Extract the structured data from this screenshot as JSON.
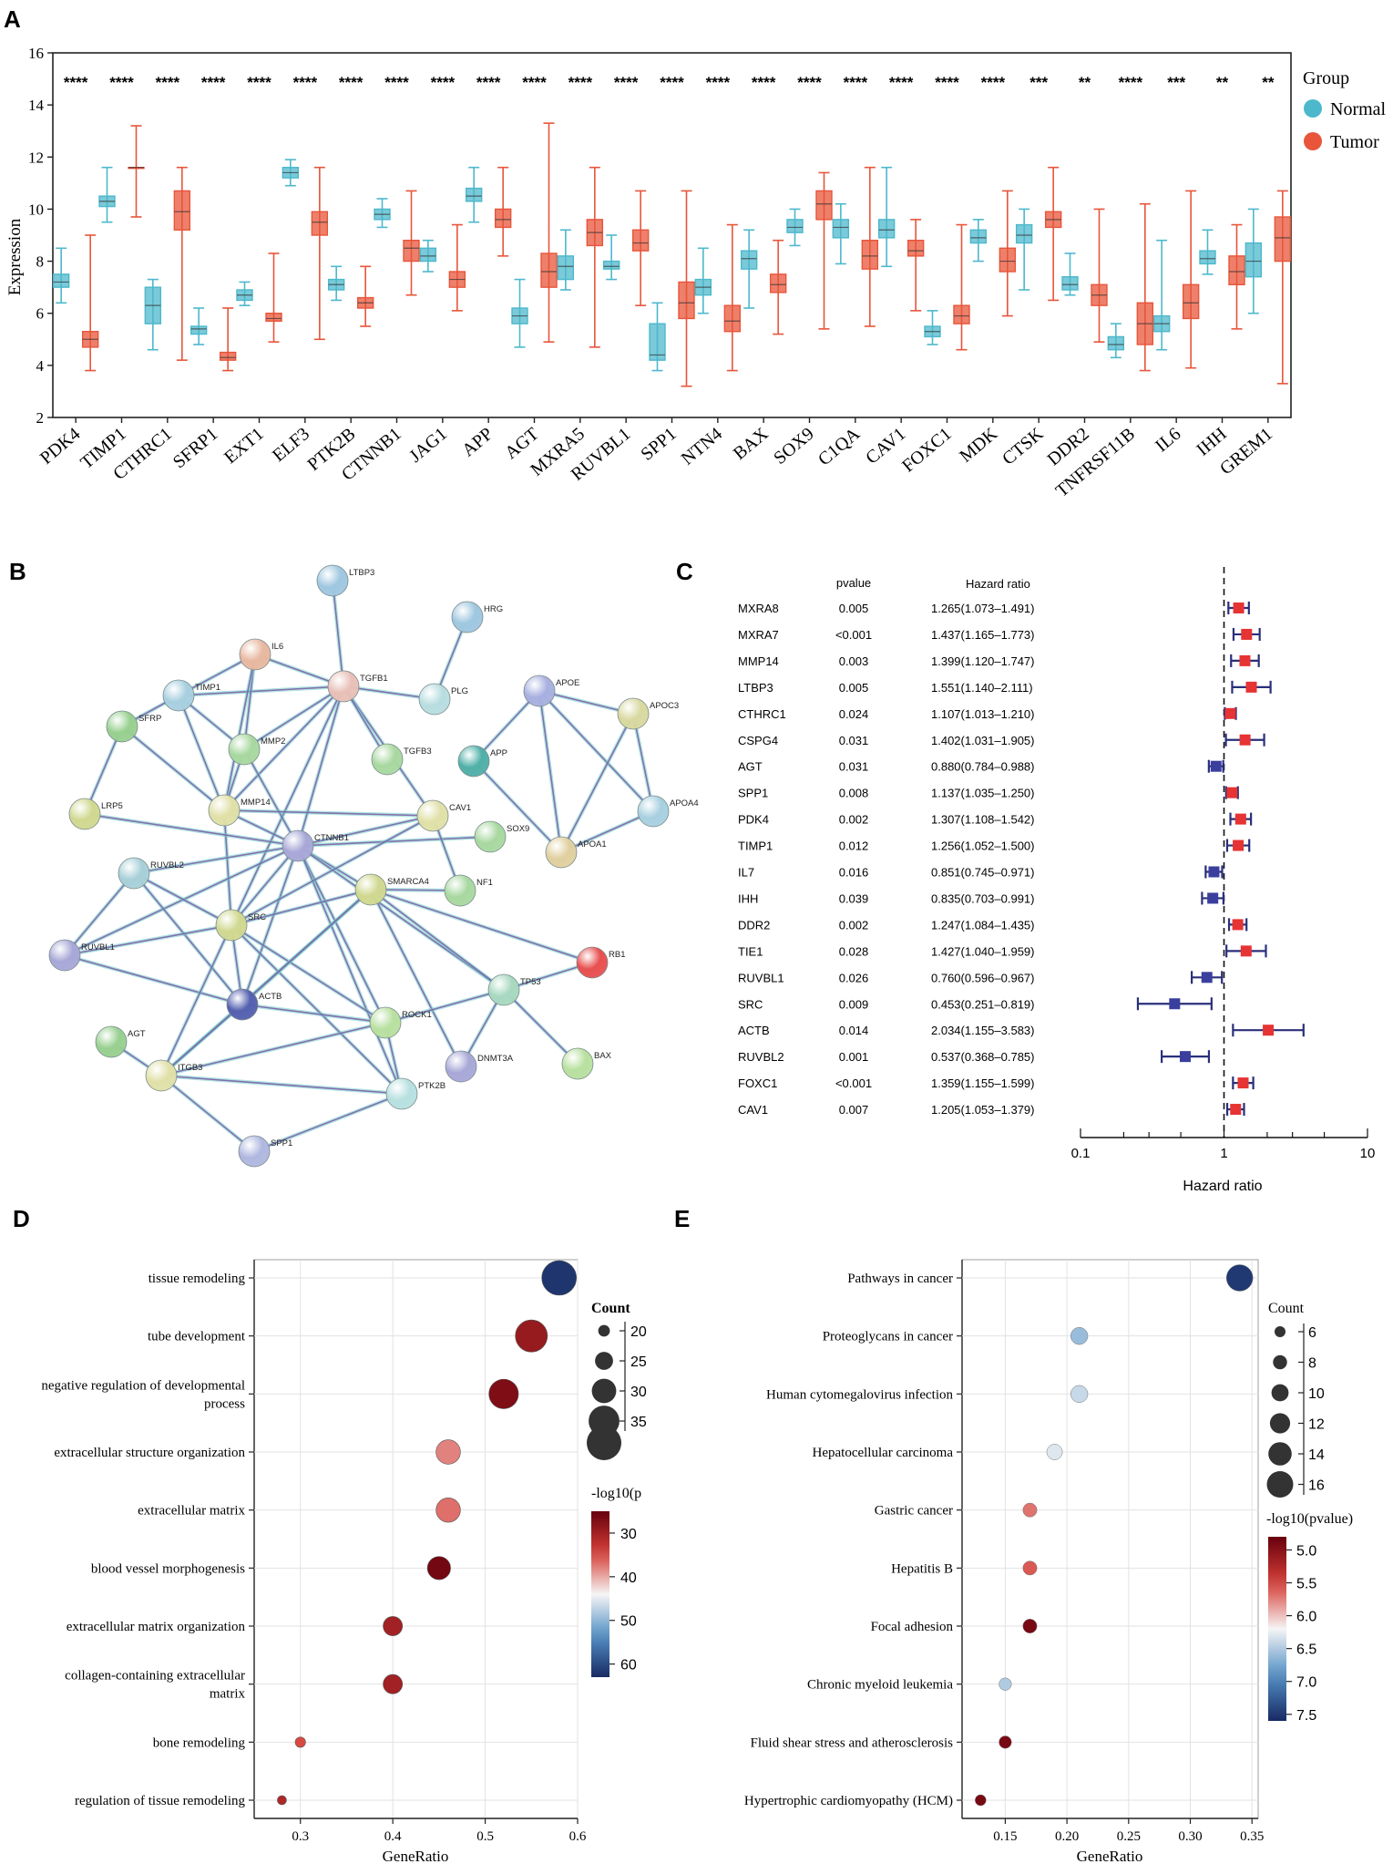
{
  "panels": {
    "a": "A",
    "b": "B",
    "c": "C",
    "d": "D",
    "e": "E"
  },
  "colors": {
    "normal": "#4db8cc",
    "tumor": "#e8553a",
    "ppi_edge": "#7b5aa6",
    "hr_up": "#e63333",
    "hr_down": "#3a3f9e",
    "ci_line": "#2a2f7a"
  },
  "chart_data": [
    {
      "id": "boxplot",
      "type": "box",
      "ylabel": "Expression",
      "ylim": [
        2,
        16
      ],
      "yticks": [
        2,
        4,
        6,
        8,
        10,
        12,
        14,
        16
      ],
      "legend_title": "Group",
      "legend": [
        "Normal",
        "Tumor"
      ],
      "categories": [
        "PDK4",
        "TIMP1",
        "CTHRC1",
        "SFRP1",
        "EXT1",
        "ELF3",
        "PTK2B",
        "CTNNB1",
        "JAG1",
        "APP",
        "AGT",
        "MXRA5",
        "RUVBL1",
        "SPP1",
        "NTN4",
        "BAX",
        "SOX9",
        "C1QA",
        "CAV1",
        "FOXC1",
        "MDK",
        "CTSK",
        "DDR2",
        "TNFRSF11B",
        "IL6",
        "IHH",
        "GREM1"
      ],
      "significance": [
        "****",
        "****",
        "****",
        "****",
        "****",
        "****",
        "****",
        "****",
        "****",
        "****",
        "****",
        "****",
        "****",
        "****",
        "****",
        "****",
        "****",
        "****",
        "****",
        "****",
        "****",
        "***",
        "**",
        "****",
        "***",
        "**",
        "**"
      ],
      "normal": [
        [
          6.4,
          7.0,
          7.2,
          7.5,
          8.5
        ],
        [
          9.5,
          10.1,
          10.3,
          10.5,
          11.6
        ],
        [
          4.6,
          5.6,
          6.3,
          7.0,
          7.3
        ],
        [
          4.8,
          5.2,
          5.4,
          5.5,
          6.2
        ],
        [
          6.3,
          6.5,
          6.7,
          6.9,
          7.2
        ],
        [
          10.9,
          11.2,
          11.4,
          11.6,
          11.9
        ],
        [
          6.5,
          6.9,
          7.1,
          7.3,
          7.8
        ],
        [
          9.3,
          9.6,
          9.8,
          10.0,
          10.4
        ],
        [
          7.6,
          8.0,
          8.2,
          8.5,
          8.8
        ],
        [
          9.5,
          10.3,
          10.5,
          10.8,
          11.6
        ],
        [
          4.7,
          5.6,
          5.9,
          6.2,
          7.3
        ],
        [
          6.9,
          7.3,
          7.8,
          8.2,
          9.2
        ],
        [
          7.3,
          7.7,
          7.8,
          8.0,
          9.0
        ],
        [
          3.8,
          4.2,
          4.4,
          5.6,
          6.4
        ],
        [
          6.0,
          6.7,
          7.0,
          7.3,
          8.5
        ],
        [
          6.2,
          7.7,
          8.1,
          8.4,
          9.2
        ],
        [
          8.6,
          9.1,
          9.3,
          9.6,
          10.0
        ],
        [
          7.9,
          8.9,
          9.3,
          9.6,
          10.2
        ],
        [
          7.8,
          8.9,
          9.2,
          9.6,
          11.6
        ],
        [
          4.8,
          5.1,
          5.3,
          5.5,
          6.1
        ],
        [
          8.0,
          8.7,
          8.9,
          9.2,
          9.6
        ],
        [
          6.9,
          8.7,
          9.0,
          9.4,
          10.0
        ],
        [
          6.7,
          6.9,
          7.1,
          7.4,
          8.3
        ],
        [
          4.3,
          4.6,
          4.8,
          5.1,
          5.6
        ],
        [
          4.6,
          5.3,
          5.6,
          5.9,
          8.8
        ],
        [
          7.5,
          7.9,
          8.1,
          8.4,
          9.2
        ],
        [
          6.0,
          7.4,
          8.0,
          8.7,
          10.0
        ]
      ],
      "tumor": [
        [
          3.8,
          4.7,
          5.0,
          5.3,
          9.0
        ],
        [
          9.7,
          11.6,
          11.6,
          11.6,
          13.2
        ],
        [
          4.2,
          9.2,
          9.9,
          10.7,
          11.6
        ],
        [
          3.8,
          4.2,
          4.3,
          4.5,
          6.2
        ],
        [
          4.9,
          5.7,
          5.8,
          6.0,
          8.3
        ],
        [
          5.0,
          9.0,
          9.5,
          9.9,
          11.6
        ],
        [
          5.5,
          6.2,
          6.4,
          6.6,
          7.8
        ],
        [
          6.7,
          8.0,
          8.5,
          8.8,
          10.7
        ],
        [
          6.1,
          7.0,
          7.3,
          7.6,
          9.4
        ],
        [
          8.2,
          9.3,
          9.6,
          10.0,
          11.6
        ],
        [
          4.9,
          7.0,
          7.6,
          8.3,
          13.3
        ],
        [
          4.7,
          8.6,
          9.1,
          9.6,
          11.6
        ],
        [
          6.3,
          8.4,
          8.7,
          9.2,
          10.7
        ],
        [
          3.2,
          5.8,
          6.4,
          7.2,
          10.7
        ],
        [
          3.8,
          5.3,
          5.7,
          6.3,
          9.4
        ],
        [
          5.2,
          6.8,
          7.1,
          7.5,
          8.8
        ],
        [
          5.4,
          9.6,
          10.2,
          10.7,
          11.4
        ],
        [
          5.5,
          7.7,
          8.2,
          8.8,
          11.6
        ],
        [
          6.1,
          8.2,
          8.4,
          8.8,
          9.6
        ],
        [
          4.6,
          5.6,
          5.9,
          6.3,
          9.4
        ],
        [
          5.9,
          7.6,
          8.0,
          8.5,
          10.7
        ],
        [
          6.5,
          9.3,
          9.6,
          9.9,
          11.6
        ],
        [
          4.9,
          6.3,
          6.7,
          7.1,
          10.0
        ],
        [
          3.8,
          4.8,
          5.6,
          6.4,
          10.2
        ],
        [
          3.9,
          5.8,
          6.4,
          7.1,
          10.7
        ],
        [
          5.4,
          7.1,
          7.6,
          8.2,
          9.4
        ],
        [
          3.3,
          8.0,
          8.9,
          9.7,
          10.7
        ]
      ]
    },
    {
      "id": "forest",
      "type": "forest",
      "col_pvalue": "pvalue",
      "col_hr": "Hazard ratio",
      "xlabel": "Hazard ratio",
      "xticks": [
        "0.1",
        "1",
        "10"
      ],
      "xlim": [
        0.1,
        10
      ],
      "rows": [
        {
          "gene": "MXRA8",
          "p": "0.005",
          "hr_text": "1.265(1.073–1.491)",
          "hr": 1.265,
          "lo": 1.073,
          "hi": 1.491
        },
        {
          "gene": "MXRA7",
          "p": "<0.001",
          "hr_text": "1.437(1.165–1.773)",
          "hr": 1.437,
          "lo": 1.165,
          "hi": 1.773
        },
        {
          "gene": "MMP14",
          "p": "0.003",
          "hr_text": "1.399(1.120–1.747)",
          "hr": 1.399,
          "lo": 1.12,
          "hi": 1.747
        },
        {
          "gene": "LTBP3",
          "p": "0.005",
          "hr_text": "1.551(1.140–2.111)",
          "hr": 1.551,
          "lo": 1.14,
          "hi": 2.111
        },
        {
          "gene": "CTHRC1",
          "p": "0.024",
          "hr_text": "1.107(1.013–1.210)",
          "hr": 1.107,
          "lo": 1.013,
          "hi": 1.21
        },
        {
          "gene": "CSPG4",
          "p": "0.031",
          "hr_text": "1.402(1.031–1.905)",
          "hr": 1.402,
          "lo": 1.031,
          "hi": 1.905
        },
        {
          "gene": "AGT",
          "p": "0.031",
          "hr_text": "0.880(0.784–0.988)",
          "hr": 0.88,
          "lo": 0.784,
          "hi": 0.988
        },
        {
          "gene": "SPP1",
          "p": "0.008",
          "hr_text": "1.137(1.035–1.250)",
          "hr": 1.137,
          "lo": 1.035,
          "hi": 1.25
        },
        {
          "gene": "PDK4",
          "p": "0.002",
          "hr_text": "1.307(1.108–1.542)",
          "hr": 1.307,
          "lo": 1.108,
          "hi": 1.542
        },
        {
          "gene": "TIMP1",
          "p": "0.012",
          "hr_text": "1.256(1.052–1.500)",
          "hr": 1.256,
          "lo": 1.052,
          "hi": 1.5
        },
        {
          "gene": "IL7",
          "p": "0.016",
          "hr_text": "0.851(0.745–0.971)",
          "hr": 0.851,
          "lo": 0.745,
          "hi": 0.971
        },
        {
          "gene": "IHH",
          "p": "0.039",
          "hr_text": "0.835(0.703–0.991)",
          "hr": 0.835,
          "lo": 0.703,
          "hi": 0.991
        },
        {
          "gene": "DDR2",
          "p": "0.002",
          "hr_text": "1.247(1.084–1.435)",
          "hr": 1.247,
          "lo": 1.084,
          "hi": 1.435
        },
        {
          "gene": "TIE1",
          "p": "0.028",
          "hr_text": "1.427(1.040–1.959)",
          "hr": 1.427,
          "lo": 1.04,
          "hi": 1.959
        },
        {
          "gene": "RUVBL1",
          "p": "0.026",
          "hr_text": "0.760(0.596–0.967)",
          "hr": 0.76,
          "lo": 0.596,
          "hi": 0.967
        },
        {
          "gene": "SRC",
          "p": "0.009",
          "hr_text": "0.453(0.251–0.819)",
          "hr": 0.453,
          "lo": 0.251,
          "hi": 0.819
        },
        {
          "gene": "ACTB",
          "p": "0.014",
          "hr_text": "2.034(1.155–3.583)",
          "hr": 2.034,
          "lo": 1.155,
          "hi": 3.583
        },
        {
          "gene": "RUVBL2",
          "p": "0.001",
          "hr_text": "0.537(0.368–0.785)",
          "hr": 0.537,
          "lo": 0.368,
          "hi": 0.785
        },
        {
          "gene": "FOXC1",
          "p": "<0.001",
          "hr_text": "1.359(1.155–1.599)",
          "hr": 1.359,
          "lo": 1.155,
          "hi": 1.599
        },
        {
          "gene": "CAV1",
          "p": "0.007",
          "hr_text": "1.205(1.053–1.379)",
          "hr": 1.205,
          "lo": 1.053,
          "hi": 1.379
        }
      ]
    },
    {
      "id": "go",
      "type": "scatter",
      "xlabel": "GeneRatio",
      "xlim": [
        0.25,
        0.6
      ],
      "xticks": [
        0.3,
        0.4,
        0.5,
        0.6
      ],
      "size_title": "Count",
      "size_ticks": [
        20,
        25,
        30,
        35
      ],
      "color_title": "-log10(p",
      "color_ticks": [
        30,
        40,
        50,
        60
      ],
      "color_range": [
        25,
        63
      ],
      "terms": [
        {
          "label": [
            "tissue remodeling"
          ],
          "ratio": 0.58,
          "count": 38,
          "logp": 62
        },
        {
          "label": [
            "tube development"
          ],
          "ratio": 0.55,
          "count": 36,
          "logp": 29
        },
        {
          "label": [
            "negative regulation of developmental",
            "process"
          ],
          "ratio": 0.52,
          "count": 34,
          "logp": 27
        },
        {
          "label": [
            "extracellular structure organization"
          ],
          "ratio": 0.46,
          "count": 30,
          "logp": 38
        },
        {
          "label": [
            "extracellular matrix"
          ],
          "ratio": 0.46,
          "count": 30,
          "logp": 37
        },
        {
          "label": [
            "blood vessel morphogenesis"
          ],
          "ratio": 0.45,
          "count": 29,
          "logp": 26
        },
        {
          "label": [
            "extracellular matrix organization"
          ],
          "ratio": 0.4,
          "count": 26,
          "logp": 30
        },
        {
          "label": [
            "collagen-containing extracellular",
            "matrix"
          ],
          "ratio": 0.4,
          "count": 26,
          "logp": 30
        },
        {
          "label": [
            "bone remodeling"
          ],
          "ratio": 0.3,
          "count": 19,
          "logp": 35
        },
        {
          "label": [
            "regulation of tissue remodeling"
          ],
          "ratio": 0.28,
          "count": 18,
          "logp": 31
        }
      ]
    },
    {
      "id": "kegg",
      "type": "scatter",
      "xlabel": "GeneRatio",
      "xlim": [
        0.115,
        0.355
      ],
      "xticks": [
        0.15,
        0.2,
        0.25,
        0.3,
        0.35
      ],
      "xtick_labels": [
        "0.15",
        "0.20",
        "0.25",
        "0.30",
        "0.35"
      ],
      "size_title": "Count",
      "size_ticks": [
        6,
        8,
        10,
        12,
        14,
        16
      ],
      "color_title": "-log10(pvalue)",
      "color_ticks": [
        "5.0",
        "5.5",
        "6.0",
        "6.5",
        "7.0",
        "7.5"
      ],
      "color_range": [
        4.8,
        7.6
      ],
      "terms": [
        {
          "label": "Pathways in cancer",
          "ratio": 0.34,
          "count": 16,
          "logp": 7.5
        },
        {
          "label": "Proteoglycans in cancer",
          "ratio": 0.21,
          "count": 10,
          "logp": 6.6
        },
        {
          "label": "Human cytomegalovirus infection",
          "ratio": 0.21,
          "count": 10,
          "logp": 6.4
        },
        {
          "label": "Hepatocellular carcinoma",
          "ratio": 0.19,
          "count": 9,
          "logp": 6.3
        },
        {
          "label": "Gastric cancer",
          "ratio": 0.17,
          "count": 8,
          "logp": 5.7
        },
        {
          "label": "Hepatitis B",
          "ratio": 0.17,
          "count": 8,
          "logp": 5.6
        },
        {
          "label": "Focal adhesion",
          "ratio": 0.17,
          "count": 8,
          "logp": 4.9
        },
        {
          "label": "Chronic myeloid leukemia",
          "ratio": 0.15,
          "count": 7,
          "logp": 6.5
        },
        {
          "label": "Fluid shear stress and atherosclerosis",
          "ratio": 0.15,
          "count": 7,
          "logp": 4.9
        },
        {
          "label": "Hypertrophic cardiomyopathy (HCM)",
          "ratio": 0.13,
          "count": 6,
          "logp": 4.9
        }
      ]
    }
  ],
  "network": {
    "nodes": [
      {
        "id": "LTBP3",
        "color": "#9fc7e0"
      },
      {
        "id": "HRG",
        "color": "#9fc7e0"
      },
      {
        "id": "IL6",
        "color": "#e8b8a0"
      },
      {
        "id": "TGFB1",
        "color": "#e8c0b8"
      },
      {
        "id": "PLG",
        "color": "#b8dde0"
      },
      {
        "id": "TIMP1",
        "color": "#a8cfe0"
      },
      {
        "id": "SFRP",
        "color": "#98d090"
      },
      {
        "id": "MMP2",
        "color": "#a8d8a0"
      },
      {
        "id": "TGFB3",
        "color": "#a8d8a0"
      },
      {
        "id": "APOE",
        "color": "#a8b0e0"
      },
      {
        "id": "APOC3",
        "color": "#d8d8a0"
      },
      {
        "id": "APP",
        "color": "#50b0a8"
      },
      {
        "id": "LRP5",
        "color": "#d0d890"
      },
      {
        "id": "MMP14",
        "color": "#e0e0a8"
      },
      {
        "id": "CAV1",
        "color": "#e0e0a8"
      },
      {
        "id": "APOA4",
        "color": "#a8d0e0"
      },
      {
        "id": "CTNNB1",
        "color": "#a8a8d8"
      },
      {
        "id": "SOX9",
        "color": "#a8d8a0"
      },
      {
        "id": "APOA1",
        "color": "#e0d0a0"
      },
      {
        "id": "RUVBL2",
        "color": "#a8d0d8"
      },
      {
        "id": "SMARCA4",
        "color": "#d0d890"
      },
      {
        "id": "NF1",
        "color": "#a8d8a0"
      },
      {
        "id": "SRC",
        "color": "#d0d890"
      },
      {
        "id": "RUVBL1",
        "color": "#a8a8d8"
      },
      {
        "id": "RB1",
        "color": "#e85050"
      },
      {
        "id": "ACTB",
        "color": "#5560b0"
      },
      {
        "id": "TP53",
        "color": "#a8d8c0"
      },
      {
        "id": "ROCK1",
        "color": "#b8e0a0"
      },
      {
        "id": "AGT",
        "color": "#98d090"
      },
      {
        "id": "ITGB3",
        "color": "#e0e0a8"
      },
      {
        "id": "DNMT3A",
        "color": "#a8a8d8"
      },
      {
        "id": "BAX",
        "color": "#b8e0a0"
      },
      {
        "id": "PTK2B",
        "color": "#b8e0e0"
      },
      {
        "id": "SPP1",
        "color": "#b0b8e0"
      }
    ]
  }
}
